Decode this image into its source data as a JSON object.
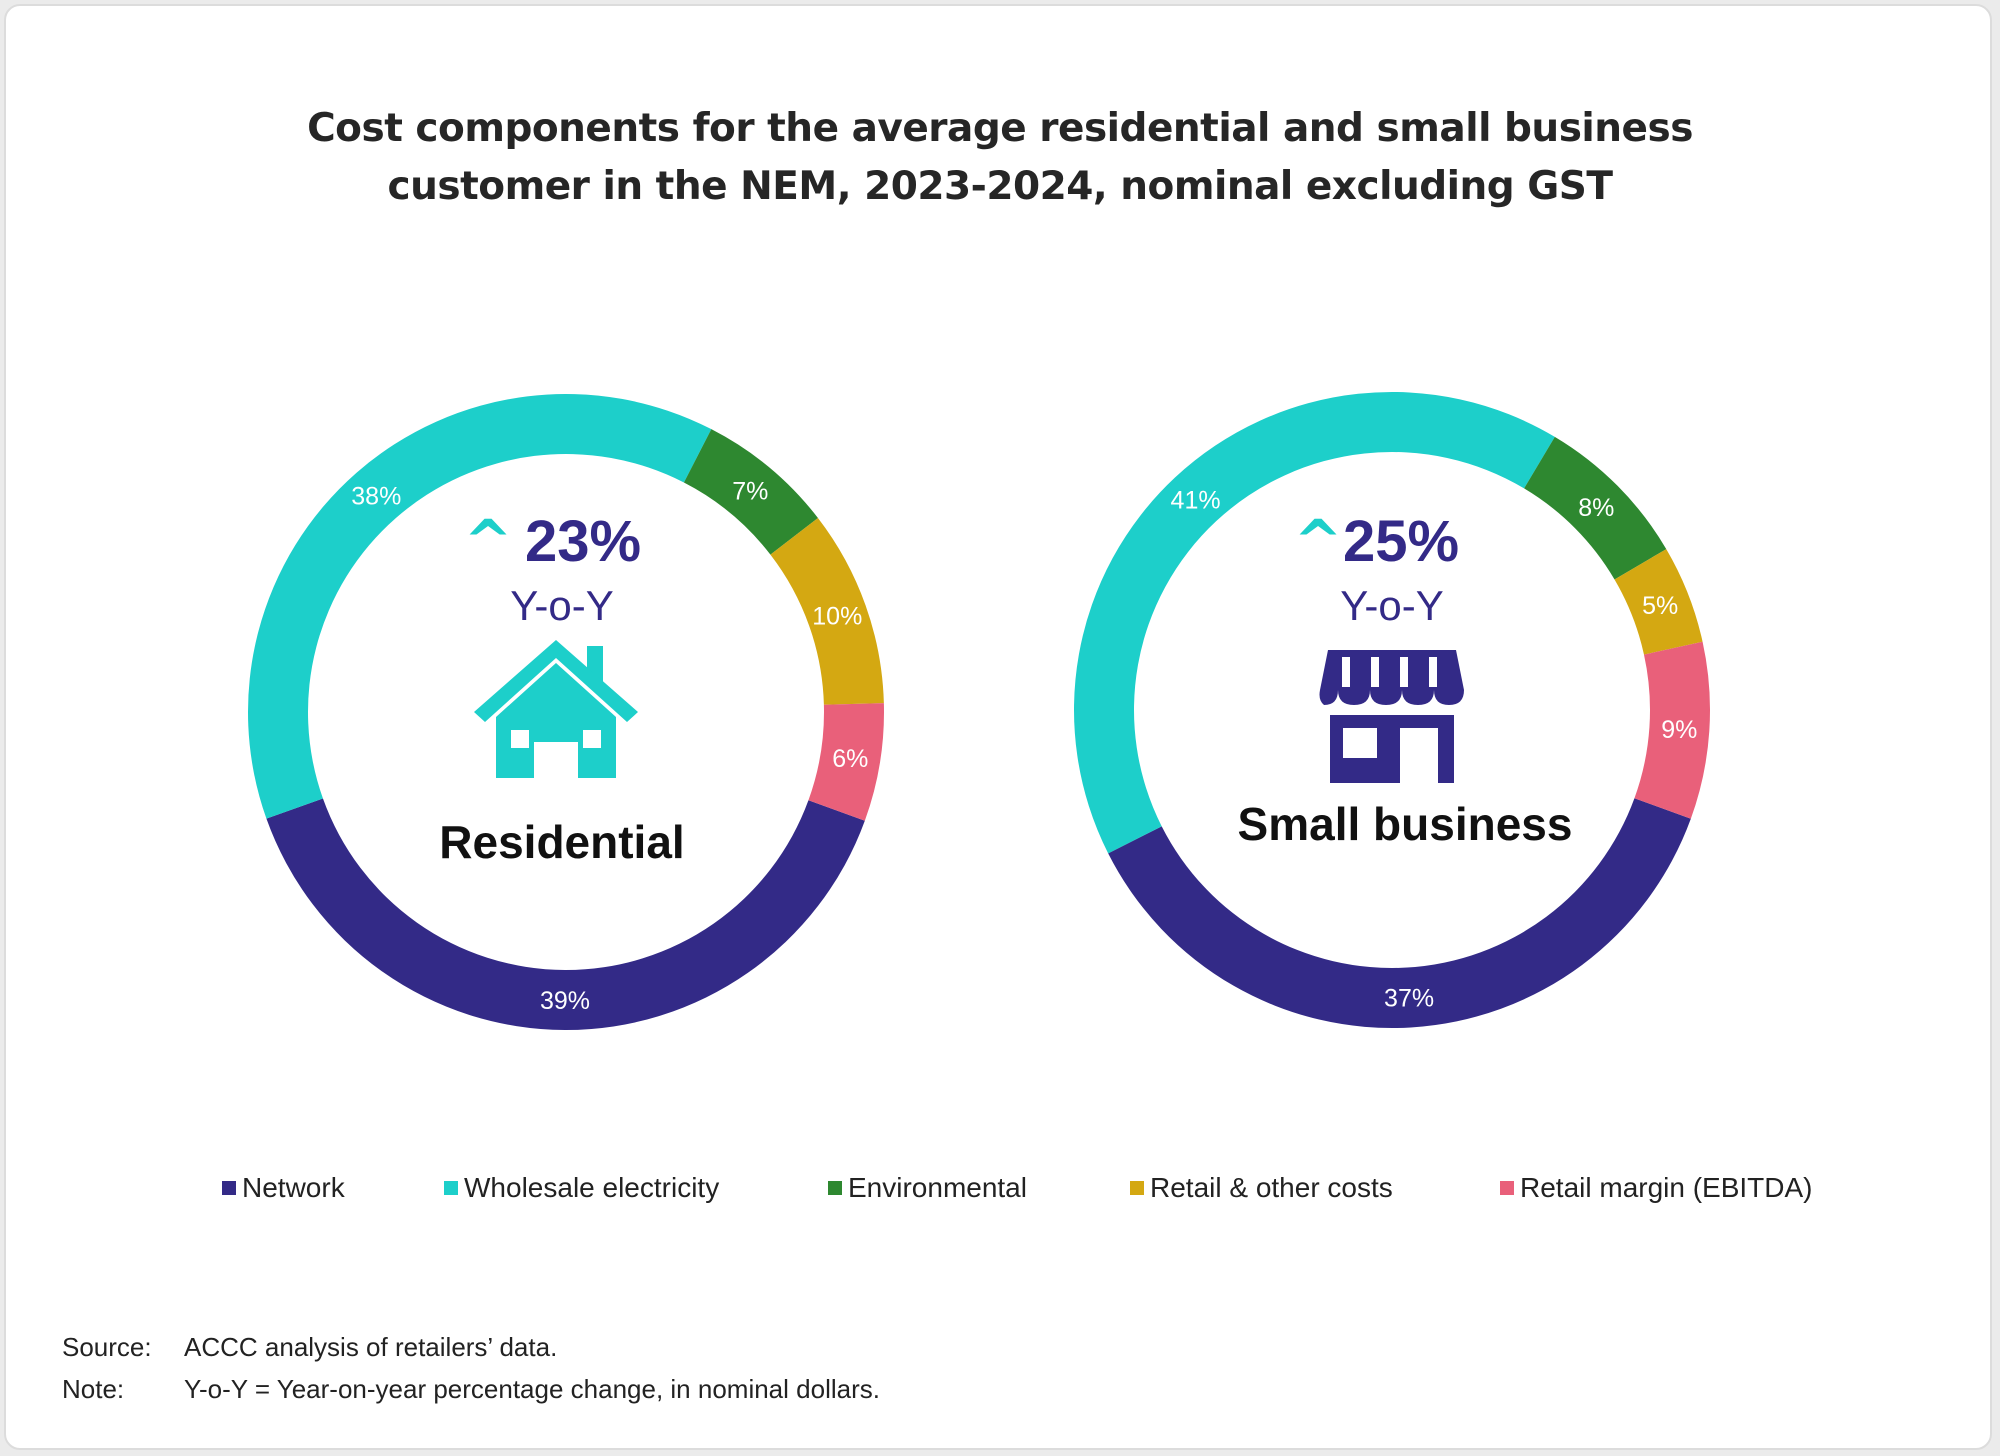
{
  "title": {
    "line1": "Cost components for the average residential and small business",
    "line2": "customer in the NEM, 2023-2024, nominal excluding GST"
  },
  "colors": {
    "network": "#332a87",
    "wholesale": "#1dcfca",
    "environmental": "#2e8830",
    "retail_costs": "#d4a812",
    "retail_margin": "#e9607a",
    "accent_arrow": "#1dcfca",
    "accent_text": "#332a87"
  },
  "chart_data": [
    {
      "type": "pie",
      "variant": "donut",
      "title": "Residential",
      "yoy_change": "23%",
      "yoy_label": "Y-o-Y",
      "icon": "house-icon",
      "slices": [
        {
          "name": "Network",
          "value": 39,
          "label": "39%",
          "color": "#332a87"
        },
        {
          "name": "Wholesale electricity",
          "value": 38,
          "label": "38%",
          "color": "#1dcfca"
        },
        {
          "name": "Environmental",
          "value": 7,
          "label": "7%",
          "color": "#2e8830"
        },
        {
          "name": "Retail & other costs",
          "value": 10,
          "label": "10%",
          "color": "#d4a812"
        },
        {
          "name": "Retail margin (EBITDA)",
          "value": 6,
          "label": "6%",
          "color": "#e9607a"
        }
      ]
    },
    {
      "type": "pie",
      "variant": "donut",
      "title": "Small business",
      "yoy_change": "25%",
      "yoy_label": "Y-o-Y",
      "icon": "storefront-icon",
      "slices": [
        {
          "name": "Network",
          "value": 37,
          "label": "37%",
          "color": "#332a87"
        },
        {
          "name": "Wholesale electricity",
          "value": 41,
          "label": "41%",
          "color": "#1dcfca"
        },
        {
          "name": "Environmental",
          "value": 8,
          "label": "8%",
          "color": "#2e8830"
        },
        {
          "name": "Retail & other costs",
          "value": 5,
          "label": "5%",
          "color": "#d4a812"
        },
        {
          "name": "Retail margin (EBITDA)",
          "value": 9,
          "label": "9%",
          "color": "#e9607a"
        }
      ]
    }
  ],
  "legend": [
    {
      "label": "Network",
      "color": "#332a87"
    },
    {
      "label": "Wholesale electricity",
      "color": "#1dcfca"
    },
    {
      "label": "Environmental",
      "color": "#2e8830"
    },
    {
      "label": "Retail & other costs",
      "color": "#d4a812"
    },
    {
      "label": "Retail margin (EBITDA)",
      "color": "#e9607a"
    }
  ],
  "footer": {
    "source_key": "Source:",
    "source_text": "ACCC analysis of retailers’ data.",
    "note_key": "Note:",
    "note_text": "Y-o-Y = Year-on-year percentage change, in nominal dollars."
  }
}
